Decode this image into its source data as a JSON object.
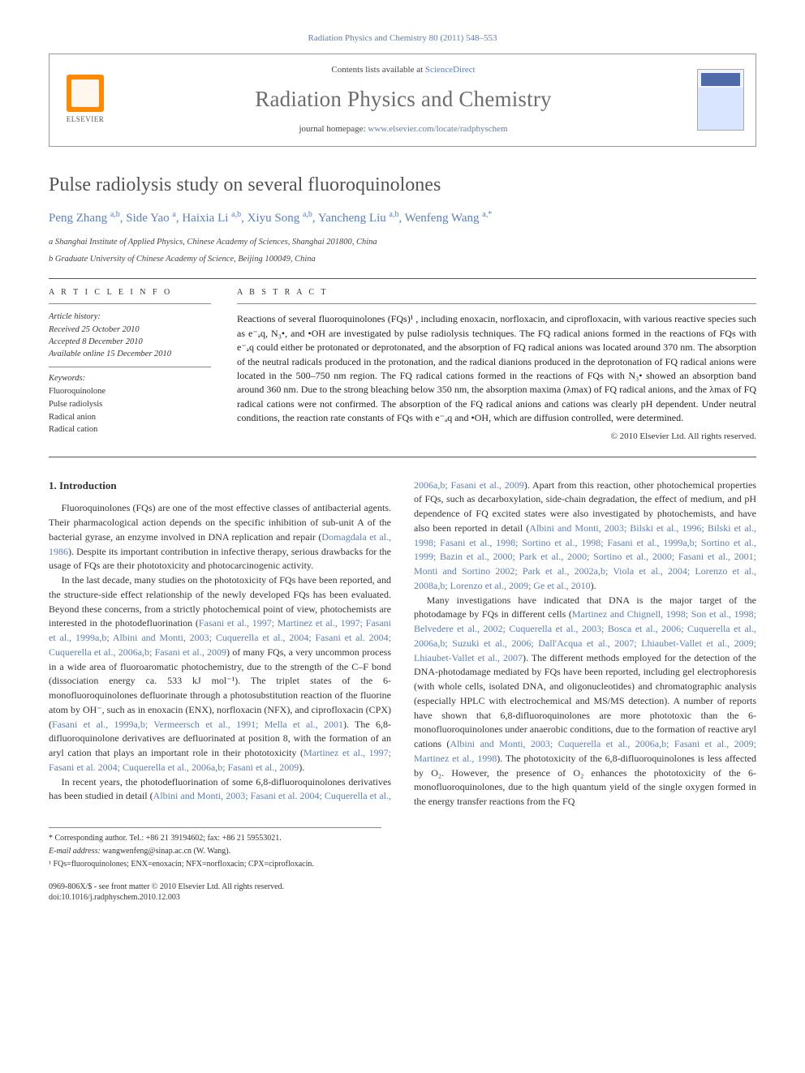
{
  "journal_ref": "Radiation Physics and Chemistry 80 (2011) 548–553",
  "header": {
    "contents_prefix": "Contents lists available at ",
    "contents_link": "ScienceDirect",
    "journal_title": "Radiation Physics and Chemistry",
    "homepage_prefix": "journal homepage: ",
    "homepage_link": "www.elsevier.com/locate/radphyschem",
    "publisher": "ELSEVIER"
  },
  "article": {
    "title": "Pulse radiolysis study on several fluoroquinolones",
    "authors_html": "Peng Zhang <sup>a,b</sup>, Side Yao <sup>a</sup>, Haixia Li <sup>a,b</sup>, Xiyu Song <sup>a,b</sup>, Yancheng Liu <sup>a,b</sup>, Wenfeng Wang <sup>a,*</sup>",
    "affiliations": [
      "a Shanghai Institute of Applied Physics, Chinese Academy of Sciences, Shanghai 201800, China",
      "b Graduate University of Chinese Academy of Science, Beijing 100049, China"
    ]
  },
  "info": {
    "label": "A R T I C L E  I N F O",
    "history_head": "Article history:",
    "history": [
      "Received 25 October 2010",
      "Accepted 8 December 2010",
      "Available online 15 December 2010"
    ],
    "keywords_head": "Keywords:",
    "keywords": [
      "Fluoroquinolone",
      "Pulse radiolysis",
      "Radical anion",
      "Radical cation"
    ]
  },
  "abstract": {
    "label": "A B S T R A C T",
    "text": "Reactions of several fluoroquinolones (FQs)¹ , including enoxacin, norfloxacin, and ciprofloxacin, with various reactive species such as e⁻ₐq, N₃•, and •OH are investigated by pulse radiolysis techniques. The FQ radical anions formed in the reactions of FQs with e⁻ₐq could either be protonated or deprotonated, and the absorption of FQ radical anions was located around 370 nm. The absorption of the neutral radicals produced in the protonation, and the radical dianions produced in the deprotonation of FQ radical anions were located in the 500–750 nm region. The FQ radical cations formed in the reactions of FQs with N₃• showed an absorption band around 360 nm. Due to the strong bleaching below 350 nm, the absorption maxima (λmax) of FQ radical anions, and the λmax of FQ radical cations were not confirmed. The absorption of the FQ radical anions and cations was clearly pH dependent. Under neutral conditions, the reaction rate constants of FQs with e⁻ₐq and •OH, which are diffusion controlled, were determined.",
    "copyright": "© 2010 Elsevier Ltd. All rights reserved."
  },
  "body": {
    "section_heading": "1.  Introduction",
    "p1": "Fluoroquinolones (FQs) are one of the most effective classes of antibacterial agents. Their pharmacological action depends on the specific inhibition of sub-unit A of the bacterial gyrase, an enzyme involved in DNA replication and repair (",
    "p1_cite1": "Domagdala et al., 1986",
    "p1_tail": "). Despite its important contribution in infective therapy, serious drawbacks for the usage of FQs are their phototoxicity and photocarcinogenic activity.",
    "p2a": "In the last decade, many studies on the phototoxicity of FQs have been reported, and the structure-side effect relationship of the newly developed FQs has been evaluated. Beyond these concerns, from a strictly photochemical point of view, photochemists are interested in the photodefluorination (",
    "p2_cite1": "Fasani et al., 1997; Martinez et al., 1997; Fasani et al., 1999a,b; Albini and Monti, 2003; Cuquerella et al., 2004; Fasani et al. 2004; Cuquerella et al., 2006a,b; Fasani et al., 2009",
    "p2b": ") of many FQs, a very uncommon process in a wide area of fluoroaromatic photochemistry, due to the strength of the C–F bond (dissociation energy ca. 533 kJ mol⁻¹). The triplet states of the 6-monofluoroquinolones defluorinate through a photosubstitution reaction of the fluorine atom by OH⁻, such as in enoxacin (ENX), norfloxacin (NFX), and ciprofloxacin (CPX) (",
    "p2_cite2": "Fasani et al., 1999a,b; Vermeersch et al., 1991; Mella et al., 2001",
    "p2c": "). The 6,8-difluoroquinolone derivatives are defluorinated at position 8, with the formation of an aryl cation that plays an important role in their phototoxicity (",
    "p2_cite3": "Martinez et al., 1997; Fasani et al. 2004; Cuquerella et al., 2006a,b; Fasani et al., 2009",
    "p2d": ").",
    "p3a": "In recent years, the photodefluorination of some 6,8-difluoroquinolones derivatives has been studied in detail (",
    "p3_cite1": "Albini and Monti, 2003; Fasani et al. 2004; Cuquerella et al., 2006a,b; Fasani et al., 2009",
    "p3b": "). Apart from this reaction, other photochemical properties of FQs, such as decarboxylation, side-chain degradation, the effect of medium, and pH dependence of FQ excited states were also investigated by photochemists, and have also been reported in detail (",
    "p3_cite2": "Albini and Monti, 2003; Bilski et al., 1996; Bilski et al., 1998; Fasani et al., 1998; Sortino et al., 1998; Fasani et al., 1999a,b; Sortino et al., 1999; Bazin et al., 2000; Park et al., 2000; Sortino et al., 2000; Fasani et al., 2001; Monti and Sortino 2002; Park et al., 2002a,b; Viola et al., 2004; Lorenzo et al., 2008a,b; Lorenzo et al., 2009; Ge et al., 2010",
    "p3c": ").",
    "p4a": "Many investigations have indicated that DNA is the major target of the photodamage by FQs in different cells (",
    "p4_cite1": "Martinez and Chignell, 1998; Son et al., 1998; Belvedere et al., 2002; Cuquerella et al., 2003; Bosca et al., 2006; Cuquerella et al., 2006a,b; Suzuki et al., 2006; Dall'Acqua et al., 2007; Lhiaubet-Vallet et al., 2009; Lhiaubet-Vallet et al., 2007",
    "p4b": "). The different methods employed for the detection of the DNA-photodamage mediated by FQs have been reported, including gel electrophoresis (with whole cells, isolated DNA, and oligonucleotides) and chromatographic analysis (especially HPLC with electrochemical and MS/MS detection). A number of reports have shown that 6,8-difluoroquinolones are more phototoxic than the 6-monofluoroquinolones under anaerobic conditions, due to the formation of reactive aryl cations (",
    "p4_cite2": "Albini and Monti, 2003; Cuquerella et al., 2006a,b; Fasani et al., 2009; Martinez et al., 1998",
    "p4c": "). The phototoxicity of the 6,8-difluoroquinolones is less affected by O₂. However, the presence of O₂ enhances the phototoxicity of the 6-monofluoroquinolones, due to the high quantum yield of the single oxygen formed in the energy transfer reactions from the FQ"
  },
  "footnotes": {
    "corr": "* Corresponding author. Tel.: +86 21 39194602; fax: +86 21 59553021.",
    "email_label": "E-mail address:",
    "email": "wangwenfeng@sinap.ac.cn (W. Wang).",
    "abbrev": "¹ FQs=fluoroquinolones; ENX=enoxacin; NFX=norfloxacin; CPX=ciprofloxacin."
  },
  "footer": {
    "issn": "0969-806X/$ - see front matter © 2010 Elsevier Ltd. All rights reserved.",
    "doi": "doi:10.1016/j.radphyschem.2010.12.003"
  },
  "colors": {
    "link": "#5b7fb9",
    "title_gray": "#545454",
    "orange": "#ff8a00"
  }
}
